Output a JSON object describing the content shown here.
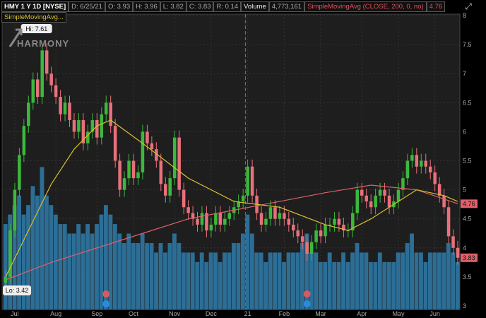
{
  "header": {
    "symbol": "HMY 1 Y 1D [NYSE]",
    "date": "D: 6/25/21",
    "open": "O: 3.93",
    "high": "H: 3.96",
    "low": "L: 3.82",
    "close": "C: 3.83",
    "range": "R: 0.14",
    "volume_label": "Volume",
    "volume_value": "4,773,161",
    "sma200_label": "SimpleMovingAvg (CLOSE, 200, 0, no)",
    "sma200_value": "4.76",
    "sma50_label": "SimpleMovingAvg..."
  },
  "logo_text": "HARMONY",
  "colors": {
    "up": "#3cb83c",
    "down": "#e8707a",
    "volume": "#2c6e96",
    "sma200": "#e0606a",
    "sma50": "#d8c030",
    "background": "#1e1e1e"
  },
  "chart_data": {
    "type": "candlestick",
    "x_ticks": [
      "Jul",
      "Aug",
      "Sep",
      "Oct",
      "Nov",
      "Dec",
      "21",
      "Feb",
      "Mar",
      "Apr",
      "May",
      "Jun"
    ],
    "x_tick_index": [
      2,
      11,
      20,
      28,
      37,
      45,
      53,
      61,
      69,
      78,
      86,
      94
    ],
    "y_ticks": [
      8,
      7.5,
      7,
      6.5,
      6,
      5.5,
      5,
      4.5,
      4,
      3.5,
      3
    ],
    "ylim": [
      3,
      8
    ],
    "grid": true,
    "closes": [
      3.5,
      4.3,
      5.0,
      5.6,
      6.1,
      6.5,
      6.9,
      6.6,
      7.4,
      7.0,
      6.8,
      6.6,
      6.3,
      6.5,
      6.2,
      6.0,
      6.2,
      5.8,
      6.0,
      6.2,
      5.9,
      6.3,
      6.5,
      6.1,
      5.5,
      5.0,
      5.2,
      5.5,
      5.2,
      5.3,
      6.0,
      5.8,
      5.7,
      5.5,
      5.1,
      4.9,
      5.2,
      5.9,
      5.0,
      4.7,
      4.6,
      4.5,
      4.4,
      4.6,
      4.3,
      4.4,
      4.6,
      4.4,
      4.5,
      4.6,
      4.7,
      4.8,
      4.9,
      5.4,
      4.9,
      4.6,
      4.4,
      4.5,
      4.7,
      4.5,
      4.6,
      4.5,
      4.4,
      4.3,
      4.2,
      4.1,
      3.9,
      4.1,
      4.3,
      4.2,
      4.4,
      4.4,
      4.5,
      4.4,
      4.3,
      4.3,
      4.6,
      5.0,
      4.9,
      4.8,
      4.7,
      4.9,
      5.0,
      4.9,
      4.7,
      4.8,
      5.0,
      5.2,
      5.5,
      5.6,
      5.4,
      5.5,
      5.4,
      5.3,
      5.1,
      4.9,
      4.7,
      4.2,
      4.0,
      3.83
    ],
    "volume_millions": [
      9,
      10,
      11,
      12,
      10,
      11,
      13,
      12,
      15,
      12,
      11,
      10,
      9,
      9,
      8,
      8,
      9,
      8,
      9,
      8,
      9,
      10,
      11,
      10,
      9,
      8,
      7,
      8,
      7,
      7,
      8,
      7,
      7,
      6,
      7,
      6,
      7,
      8,
      7,
      6,
      6,
      6,
      5,
      6,
      5,
      6,
      6,
      5,
      6,
      6,
      7,
      7,
      8,
      10,
      8,
      6,
      6,
      5,
      6,
      6,
      6,
      5,
      6,
      6,
      6,
      7,
      8,
      6,
      6,
      5,
      5,
      6,
      5,
      5,
      6,
      5,
      6,
      7,
      6,
      6,
      5,
      5,
      6,
      5,
      5,
      5,
      6,
      6,
      7,
      8,
      6,
      6,
      5,
      6,
      6,
      6,
      6,
      7,
      6,
      5
    ],
    "sma200": {
      "index": [
        0,
        10,
        20,
        30,
        40,
        50,
        60,
        70,
        80,
        90,
        99
      ],
      "values": [
        3.45,
        3.75,
        4.0,
        4.25,
        4.5,
        4.65,
        4.8,
        4.95,
        5.08,
        5.0,
        4.76
      ]
    },
    "sma50": {
      "index": [
        0,
        5,
        10,
        15,
        20,
        23,
        30,
        40,
        50,
        60,
        70,
        75,
        80,
        90,
        96,
        99
      ],
      "values": [
        3.5,
        4.3,
        5.1,
        5.7,
        6.1,
        6.2,
        5.8,
        5.2,
        4.8,
        4.7,
        4.4,
        4.3,
        4.5,
        5.0,
        4.9,
        4.8
      ]
    },
    "hi_label": "Hi: 7.61",
    "hi_index": 8,
    "lo_label": "Lo: 3.42",
    "last_labels": {
      "sma200": "4.76",
      "close": "3.83"
    },
    "event_markers": [
      22,
      66
    ],
    "year_divider_index": 52
  }
}
